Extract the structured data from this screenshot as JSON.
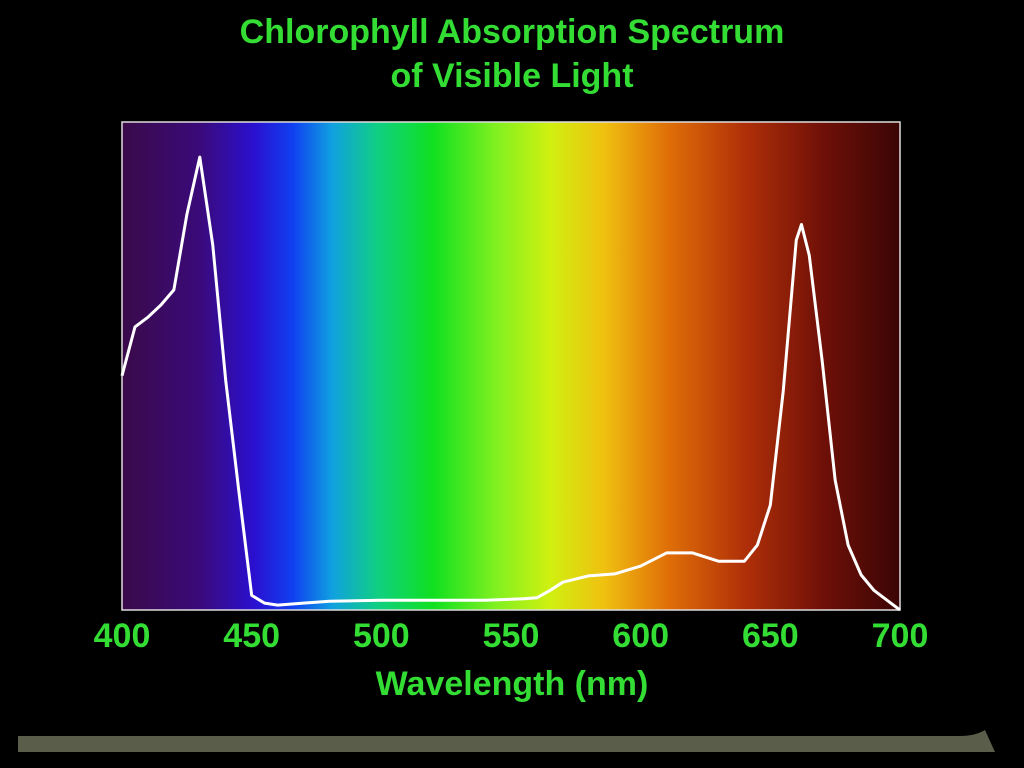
{
  "chart_data": {
    "type": "line",
    "title": [
      "Chlorophyll Absorption Spectrum",
      "of Visible Light"
    ],
    "x_label": "Wavelength (nm)",
    "x": [
      400,
      405,
      410,
      415,
      420,
      425,
      430,
      435,
      440,
      445,
      450,
      455,
      460,
      470,
      480,
      500,
      520,
      540,
      555,
      560,
      565,
      570,
      580,
      590,
      600,
      610,
      620,
      630,
      640,
      645,
      650,
      655,
      660,
      662,
      665,
      670,
      675,
      680,
      685,
      690,
      700
    ],
    "values": [
      48,
      58,
      60,
      62.5,
      65.6,
      81,
      92.8,
      74.8,
      47,
      24.6,
      3,
      1.4,
      1,
      1.4,
      1.8,
      2,
      2,
      2,
      2.3,
      2.5,
      4,
      5.7,
      7,
      7.4,
      9,
      11.7,
      11.7,
      10,
      10,
      13.3,
      21.5,
      45,
      75.8,
      79,
      72.7,
      51,
      26.6,
      13.3,
      7.2,
      4,
      0
    ],
    "color": "#ffffff",
    "xlim": [
      400,
      700
    ],
    "xticks": [
      400,
      450,
      500,
      550,
      600,
      650,
      700
    ],
    "ylim": [
      0,
      100
    ]
  }
}
